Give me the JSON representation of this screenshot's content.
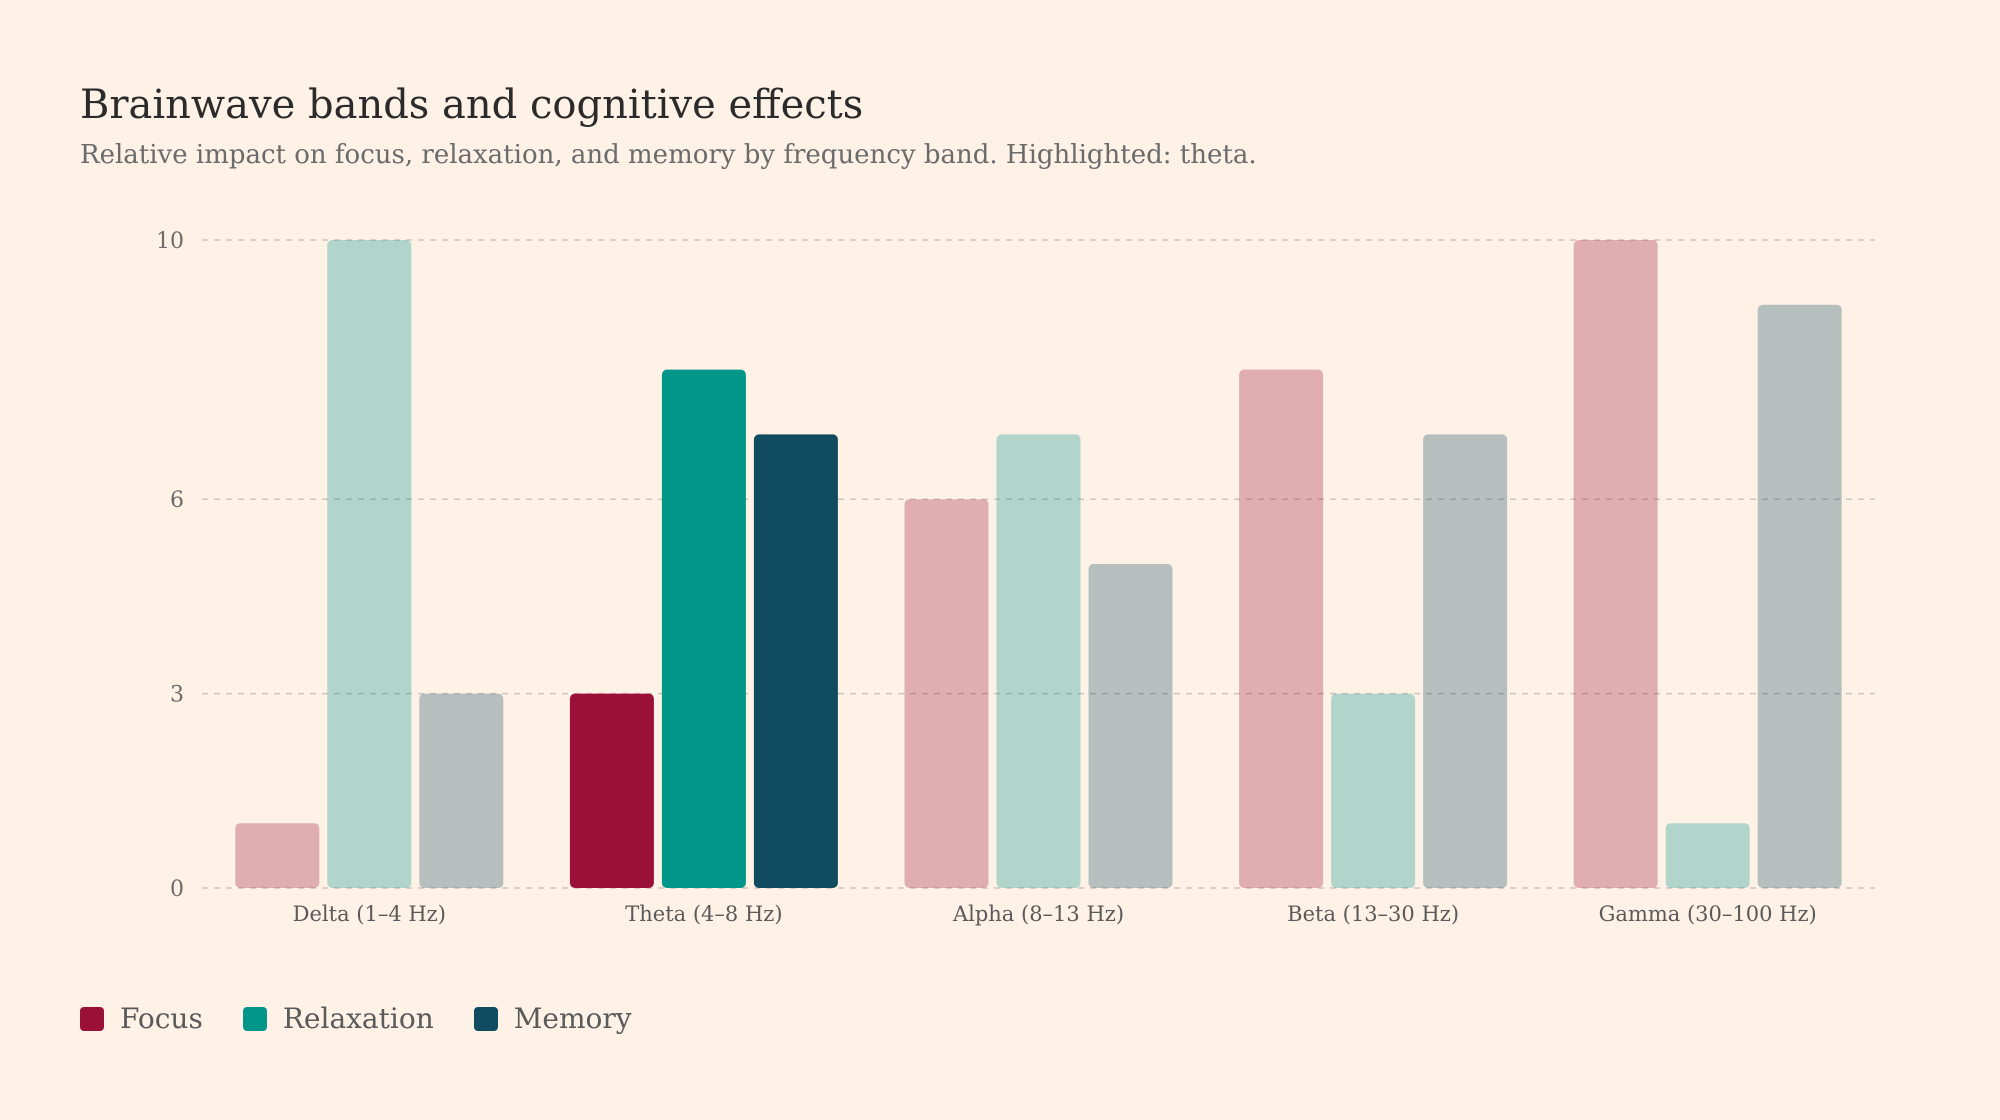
{
  "header": {
    "title": "Brainwave bands and cognitive effects",
    "subtitle": "Relative impact on focus, relaxation, and memory by frequency band. Highlighted: theta."
  },
  "chart_data": {
    "type": "bar",
    "title": "Brainwave bands and cognitive effects",
    "subtitle": "Relative impact on focus, relaxation, and memory by frequency band. Highlighted: theta.",
    "xlabel": "",
    "ylabel": "",
    "categories": [
      "Delta (1–4 Hz)",
      "Theta (4–8 Hz)",
      "Alpha (8–13 Hz)",
      "Beta (13–30 Hz)",
      "Gamma (30–100 Hz)"
    ],
    "highlighted_category": "Theta (4–8 Hz)",
    "ylim": [
      0,
      10
    ],
    "y_ticks": [
      0,
      3,
      6,
      10
    ],
    "grid": true,
    "legend_position": "bottom-left",
    "series": [
      {
        "name": "Focus",
        "color": "#9b1039",
        "values": [
          1,
          3,
          6,
          8,
          10
        ]
      },
      {
        "name": "Relaxation",
        "color": "#00968a",
        "values": [
          10,
          8,
          7,
          3,
          1
        ]
      },
      {
        "name": "Memory",
        "color": "#114b5f",
        "values": [
          3,
          7,
          5,
          7,
          9
        ]
      }
    ]
  },
  "legend": {
    "items": [
      {
        "label": "Focus",
        "color": "#9b1039"
      },
      {
        "label": "Relaxation",
        "color": "#00968a"
      },
      {
        "label": "Memory",
        "color": "#114b5f"
      }
    ]
  }
}
